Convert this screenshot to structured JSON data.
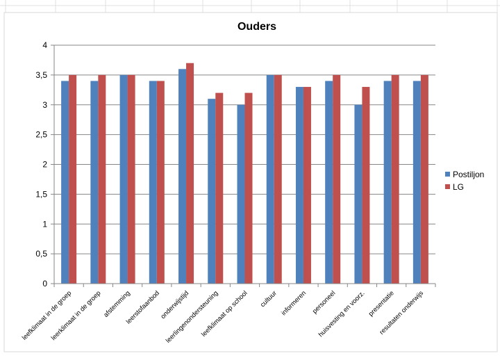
{
  "chart_data": {
    "type": "bar",
    "title": "Ouders",
    "xlabel": "",
    "ylabel": "",
    "ylim": [
      0,
      4
    ],
    "yticks": [
      "0",
      "0,5",
      "1",
      "1,5",
      "2",
      "2,5",
      "3",
      "3,5",
      "4"
    ],
    "grid": "horizontal",
    "legend_position": "right",
    "categories": [
      "leefklimaat in de groep",
      "leerklimaat in de groep",
      "afstemming",
      "leerstofaanbod",
      "onderwijstijd",
      "leerlingenondersteuning",
      "leefklimaat op school",
      "cultuur",
      "informeren",
      "personeel",
      "huisvesting en voorz.",
      "presentatie",
      "resultaten onderwijs"
    ],
    "series": [
      {
        "name": "Postiljon",
        "color": "#4F81BD",
        "values": [
          3.4,
          3.4,
          3.5,
          3.4,
          3.6,
          3.1,
          3.0,
          3.5,
          3.3,
          3.4,
          3.0,
          3.4,
          3.4
        ]
      },
      {
        "name": "LG",
        "color": "#C0504D",
        "values": [
          3.5,
          3.5,
          3.5,
          3.4,
          3.7,
          3.2,
          3.2,
          3.5,
          3.3,
          3.5,
          3.3,
          3.5,
          3.5
        ]
      }
    ]
  }
}
